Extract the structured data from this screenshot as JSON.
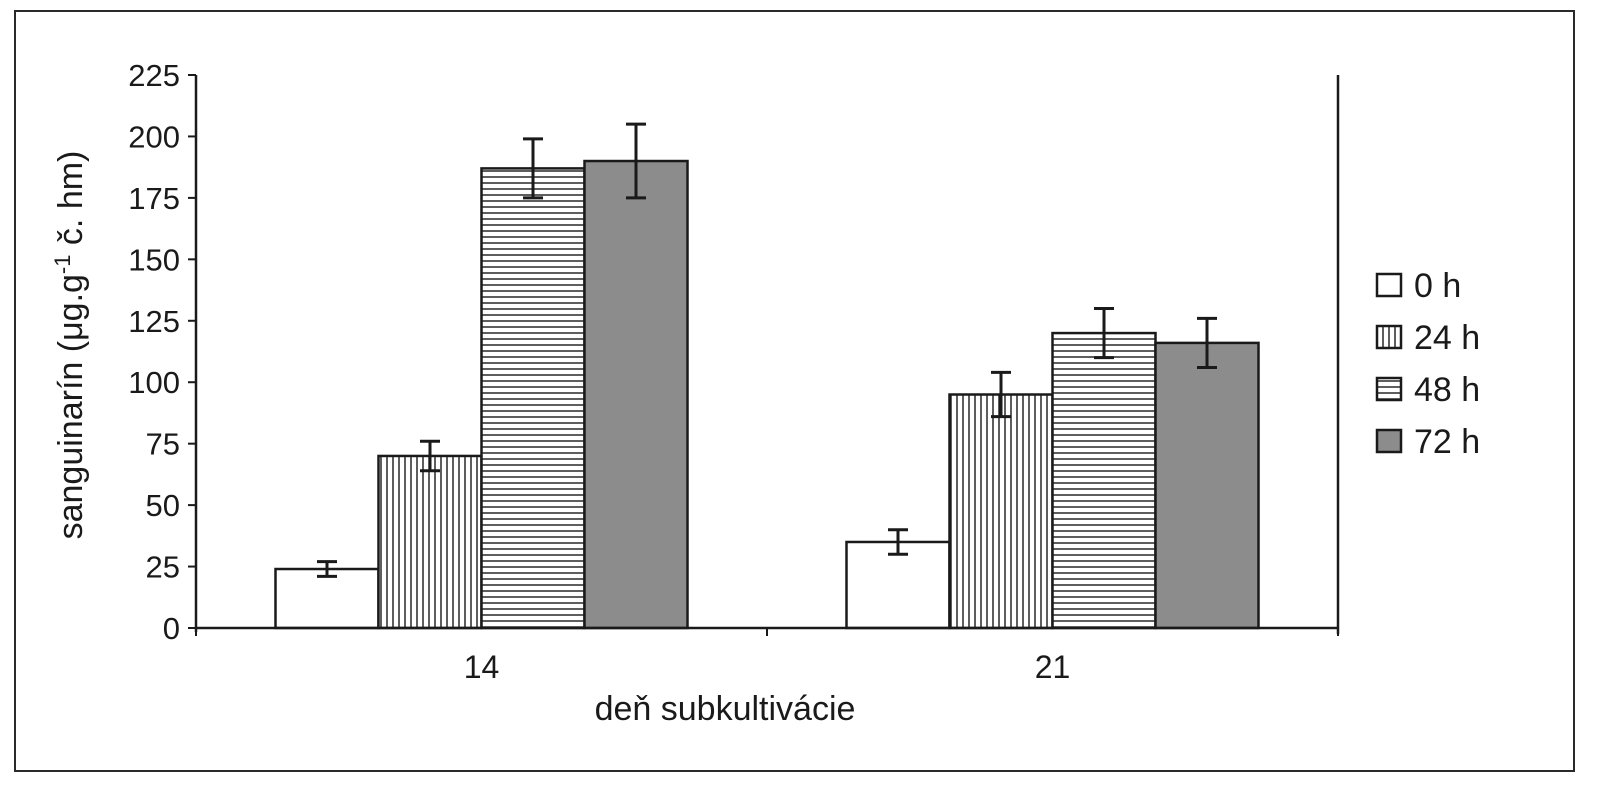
{
  "chart_data": {
    "type": "bar",
    "xlabel": "deň subkultivácie",
    "ylabel_main": "sanguinarín (μg.g",
    "ylabel_sup": "-1",
    "ylabel_tail": " č. hm)",
    "ylim": [
      0,
      225
    ],
    "yticks": [
      0,
      25,
      50,
      75,
      100,
      125,
      150,
      175,
      200,
      225
    ],
    "categories": [
      "14",
      "21"
    ],
    "series": [
      {
        "name": "0 h",
        "values": [
          24,
          35
        ],
        "errors": [
          3,
          5
        ],
        "pattern": "white"
      },
      {
        "name": "24 h",
        "values": [
          70,
          95
        ],
        "errors": [
          6,
          9
        ],
        "pattern": "vertical"
      },
      {
        "name": "48 h",
        "values": [
          187,
          120
        ],
        "errors": [
          12,
          10
        ],
        "pattern": "horizontal"
      },
      {
        "name": "72 h",
        "values": [
          190,
          116
        ],
        "errors": [
          15,
          10
        ],
        "pattern": "gray"
      }
    ],
    "grid": false,
    "legend_position": "right",
    "colors": {
      "gray_fill": "#8c8c8c",
      "line": "#1a1a1a"
    }
  }
}
